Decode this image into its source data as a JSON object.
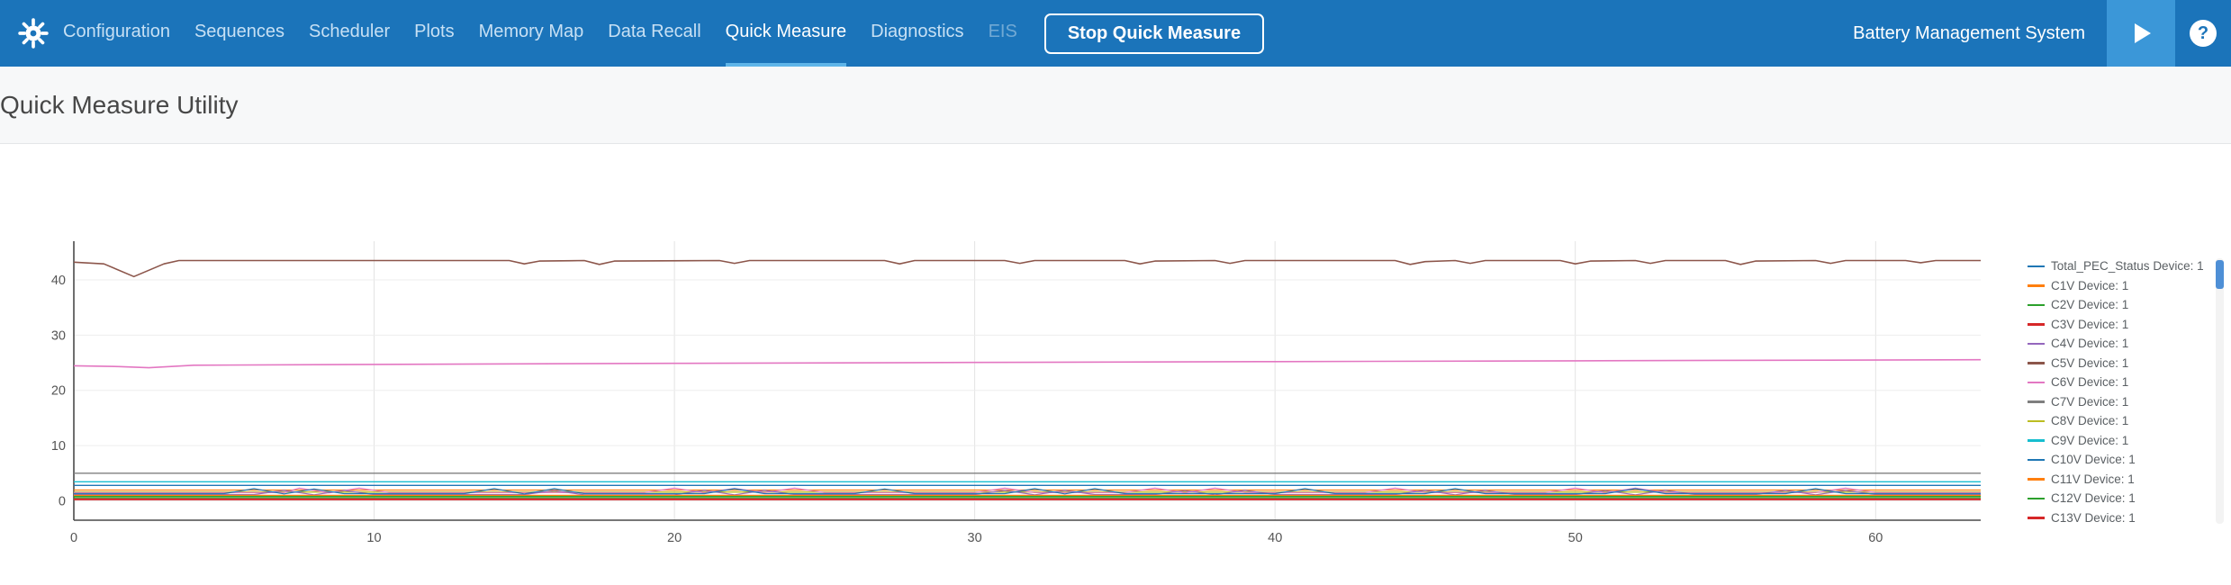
{
  "colors": {
    "topbar": "#1b74ba",
    "nav_active_underline": "#5fb5e9",
    "play_button_bg": "#3b97d8"
  },
  "topbar": {
    "app_title": "Battery Management System",
    "help_label": "?",
    "stop_button_label": "Stop Quick Measure",
    "nav_items": [
      {
        "label": "Configuration",
        "state": "normal"
      },
      {
        "label": "Sequences",
        "state": "normal"
      },
      {
        "label": "Scheduler",
        "state": "normal"
      },
      {
        "label": "Plots",
        "state": "normal"
      },
      {
        "label": "Memory Map",
        "state": "normal"
      },
      {
        "label": "Data Recall",
        "state": "normal"
      },
      {
        "label": "Quick Measure",
        "state": "active"
      },
      {
        "label": "Diagnostics",
        "state": "normal"
      },
      {
        "label": "EIS",
        "state": "disabled"
      }
    ]
  },
  "page": {
    "title": "Quick Measure Utility"
  },
  "chart_data": {
    "type": "line",
    "title": "",
    "xlabel": "",
    "ylabel": "",
    "xlim": [
      0,
      63.5
    ],
    "ylim": [
      -3.5,
      47
    ],
    "xticks": [
      0,
      10,
      20,
      30,
      40,
      50,
      60
    ],
    "yticks": [
      0,
      10,
      20,
      30,
      40
    ],
    "grid": true,
    "legend_position": "right",
    "legend": [
      {
        "label": "Total_PEC_Status Device: 1",
        "color": "#1f77b4"
      },
      {
        "label": "C1V Device: 1",
        "color": "#ff7f0e"
      },
      {
        "label": "C2V Device: 1",
        "color": "#2ca02c"
      },
      {
        "label": "C3V Device: 1",
        "color": "#d62728"
      },
      {
        "label": "C4V Device: 1",
        "color": "#9467bd"
      },
      {
        "label": "C5V Device: 1",
        "color": "#8c564b"
      },
      {
        "label": "C6V Device: 1",
        "color": "#e377c2"
      },
      {
        "label": "C7V Device: 1",
        "color": "#7f7f7f"
      },
      {
        "label": "C8V Device: 1",
        "color": "#bcbd22"
      },
      {
        "label": "C9V Device: 1",
        "color": "#17becf"
      },
      {
        "label": "C10V Device: 1",
        "color": "#1f77b4"
      },
      {
        "label": "C11V Device: 1",
        "color": "#ff7f0e"
      },
      {
        "label": "C12V Device: 1",
        "color": "#2ca02c"
      },
      {
        "label": "C13V Device: 1",
        "color": "#d62728"
      }
    ],
    "lines": [
      {
        "color": "#8c564b",
        "width": 1.6,
        "points": [
          [
            0,
            43.2
          ],
          [
            1,
            42.9
          ],
          [
            2,
            40.6
          ],
          [
            3,
            42.9
          ],
          [
            3.5,
            43.5
          ],
          [
            14.5,
            43.5
          ],
          [
            15,
            42.9
          ],
          [
            15.5,
            43.4
          ],
          [
            17,
            43.5
          ],
          [
            17.5,
            42.8
          ],
          [
            18,
            43.4
          ],
          [
            21.5,
            43.5
          ],
          [
            22,
            43.0
          ],
          [
            22.5,
            43.5
          ],
          [
            27,
            43.5
          ],
          [
            27.5,
            42.9
          ],
          [
            28,
            43.5
          ],
          [
            31,
            43.5
          ],
          [
            31.5,
            43.0
          ],
          [
            32,
            43.5
          ],
          [
            35,
            43.5
          ],
          [
            35.5,
            42.9
          ],
          [
            36,
            43.4
          ],
          [
            38,
            43.5
          ],
          [
            38.5,
            43.0
          ],
          [
            39,
            43.5
          ],
          [
            44,
            43.5
          ],
          [
            44.5,
            42.8
          ],
          [
            45,
            43.3
          ],
          [
            46,
            43.5
          ],
          [
            46.5,
            43.0
          ],
          [
            47,
            43.5
          ],
          [
            49.5,
            43.5
          ],
          [
            50,
            42.9
          ],
          [
            50.5,
            43.4
          ],
          [
            52,
            43.5
          ],
          [
            52.5,
            43.0
          ],
          [
            53,
            43.5
          ],
          [
            55,
            43.5
          ],
          [
            55.5,
            42.8
          ],
          [
            56,
            43.4
          ],
          [
            58,
            43.5
          ],
          [
            58.5,
            43.0
          ],
          [
            59,
            43.5
          ],
          [
            61,
            43.5
          ],
          [
            61.5,
            43.1
          ],
          [
            62,
            43.5
          ],
          [
            63.5,
            43.5
          ]
        ]
      },
      {
        "color": "#e377c2",
        "width": 1.6,
        "points": [
          [
            0,
            24.45
          ],
          [
            1.5,
            24.3
          ],
          [
            2.5,
            24.1
          ],
          [
            4,
            24.55
          ],
          [
            10,
            24.7
          ],
          [
            20,
            24.9
          ],
          [
            30,
            25.05
          ],
          [
            40,
            25.2
          ],
          [
            50,
            25.35
          ],
          [
            63.5,
            25.55
          ]
        ]
      },
      {
        "color": "#7f7f7f",
        "width": 1.4,
        "points": [
          [
            0,
            5.0
          ],
          [
            63.5,
            5.0
          ]
        ]
      },
      {
        "color": "#17becf",
        "width": 1.4,
        "points": [
          [
            0,
            3.45
          ],
          [
            63.5,
            3.45
          ]
        ]
      },
      {
        "color": "#1f77b4",
        "width": 1.4,
        "points": [
          [
            0,
            2.8
          ],
          [
            63.5,
            2.8
          ]
        ]
      },
      {
        "color": "#ff7f0e",
        "width": 1.3,
        "points": [
          [
            0,
            1.95
          ],
          [
            63.5,
            1.95
          ]
        ]
      },
      {
        "color": "#bcbd22",
        "width": 1.3,
        "points": [
          [
            0,
            1.6
          ],
          [
            63.5,
            1.6
          ]
        ]
      },
      {
        "color": "#e377c2",
        "width": 1.2,
        "points": [
          [
            0,
            1.5
          ],
          [
            7,
            1.5
          ],
          [
            7.5,
            2.3
          ],
          [
            8.5,
            1.45
          ],
          [
            9.5,
            2.3
          ],
          [
            10.5,
            1.5
          ],
          [
            19,
            1.5
          ],
          [
            20,
            2.3
          ],
          [
            21,
            1.45
          ],
          [
            22,
            2.25
          ],
          [
            23,
            1.5
          ],
          [
            24,
            2.3
          ],
          [
            25,
            1.5
          ],
          [
            30,
            1.5
          ],
          [
            31,
            2.3
          ],
          [
            32,
            1.5
          ],
          [
            35,
            1.5
          ],
          [
            36,
            2.3
          ],
          [
            37,
            1.45
          ],
          [
            38,
            2.3
          ],
          [
            39,
            1.5
          ],
          [
            43,
            1.5
          ],
          [
            44,
            2.3
          ],
          [
            45,
            1.5
          ],
          [
            49,
            1.5
          ],
          [
            50,
            2.3
          ],
          [
            51,
            1.45
          ],
          [
            52,
            2.3
          ],
          [
            53,
            1.5
          ],
          [
            58,
            1.5
          ],
          [
            59,
            2.3
          ],
          [
            60,
            1.5
          ],
          [
            63.5,
            1.5
          ]
        ]
      },
      {
        "color": "#9467bd",
        "width": 1.2,
        "points": [
          [
            0,
            1.15
          ],
          [
            6,
            1.15
          ],
          [
            7,
            1.9
          ],
          [
            8,
            1.1
          ],
          [
            9,
            1.9
          ],
          [
            10,
            1.15
          ],
          [
            15,
            1.15
          ],
          [
            16,
            1.85
          ],
          [
            17,
            1.1
          ],
          [
            20,
            1.1
          ],
          [
            21,
            1.9
          ],
          [
            22,
            1.1
          ],
          [
            23,
            1.9
          ],
          [
            24,
            1.15
          ],
          [
            30,
            1.15
          ],
          [
            31,
            1.9
          ],
          [
            32,
            1.1
          ],
          [
            33,
            1.9
          ],
          [
            34,
            1.15
          ],
          [
            36,
            1.15
          ],
          [
            37,
            1.85
          ],
          [
            38,
            1.1
          ],
          [
            39,
            1.9
          ],
          [
            40,
            1.15
          ],
          [
            44,
            1.15
          ],
          [
            45,
            1.9
          ],
          [
            46,
            1.1
          ],
          [
            47,
            1.9
          ],
          [
            48,
            1.15
          ],
          [
            50,
            1.15
          ],
          [
            51,
            1.85
          ],
          [
            52,
            1.1
          ],
          [
            53,
            1.9
          ],
          [
            54,
            1.15
          ],
          [
            56,
            1.15
          ],
          [
            57,
            1.9
          ],
          [
            58,
            1.1
          ],
          [
            59,
            1.9
          ],
          [
            60,
            1.15
          ],
          [
            63.5,
            1.15
          ]
        ]
      },
      {
        "color": "#1f77b4",
        "width": 1.2,
        "points": [
          [
            0,
            1.3
          ],
          [
            5,
            1.3
          ],
          [
            6,
            2.2
          ],
          [
            7,
            1.25
          ],
          [
            8,
            2.15
          ],
          [
            9,
            1.3
          ],
          [
            13,
            1.3
          ],
          [
            14,
            2.2
          ],
          [
            15,
            1.25
          ],
          [
            16,
            2.2
          ],
          [
            17,
            1.3
          ],
          [
            21,
            1.3
          ],
          [
            22,
            2.2
          ],
          [
            23,
            1.3
          ],
          [
            26,
            1.3
          ],
          [
            27,
            2.15
          ],
          [
            28,
            1.3
          ],
          [
            31,
            1.3
          ],
          [
            32,
            2.2
          ],
          [
            33,
            1.25
          ],
          [
            34,
            2.2
          ],
          [
            35,
            1.3
          ],
          [
            40,
            1.3
          ],
          [
            41,
            2.2
          ],
          [
            42,
            1.3
          ],
          [
            45,
            1.3
          ],
          [
            46,
            2.2
          ],
          [
            47,
            1.3
          ],
          [
            51,
            1.3
          ],
          [
            52,
            2.2
          ],
          [
            53,
            1.3
          ],
          [
            57,
            1.3
          ],
          [
            58,
            2.2
          ],
          [
            59,
            1.3
          ],
          [
            63.5,
            1.3
          ]
        ]
      },
      {
        "color": "#ff7f0e",
        "width": 1.2,
        "points": [
          [
            0,
            1.0
          ],
          [
            63.5,
            1.0
          ]
        ]
      },
      {
        "color": "#2ca02c",
        "width": 1.3,
        "points": [
          [
            0,
            0.8
          ],
          [
            63.5,
            0.8
          ]
        ]
      },
      {
        "color": "#2ca02c",
        "width": 1.2,
        "points": [
          [
            0,
            0.55
          ],
          [
            63.5,
            0.55
          ]
        ]
      },
      {
        "color": "#d62728",
        "width": 1.3,
        "points": [
          [
            0,
            0.35
          ],
          [
            63.5,
            0.35
          ]
        ]
      },
      {
        "color": "#d62728",
        "width": 1.2,
        "points": [
          [
            0,
            0.2
          ],
          [
            63.5,
            0.2
          ]
        ]
      }
    ]
  }
}
